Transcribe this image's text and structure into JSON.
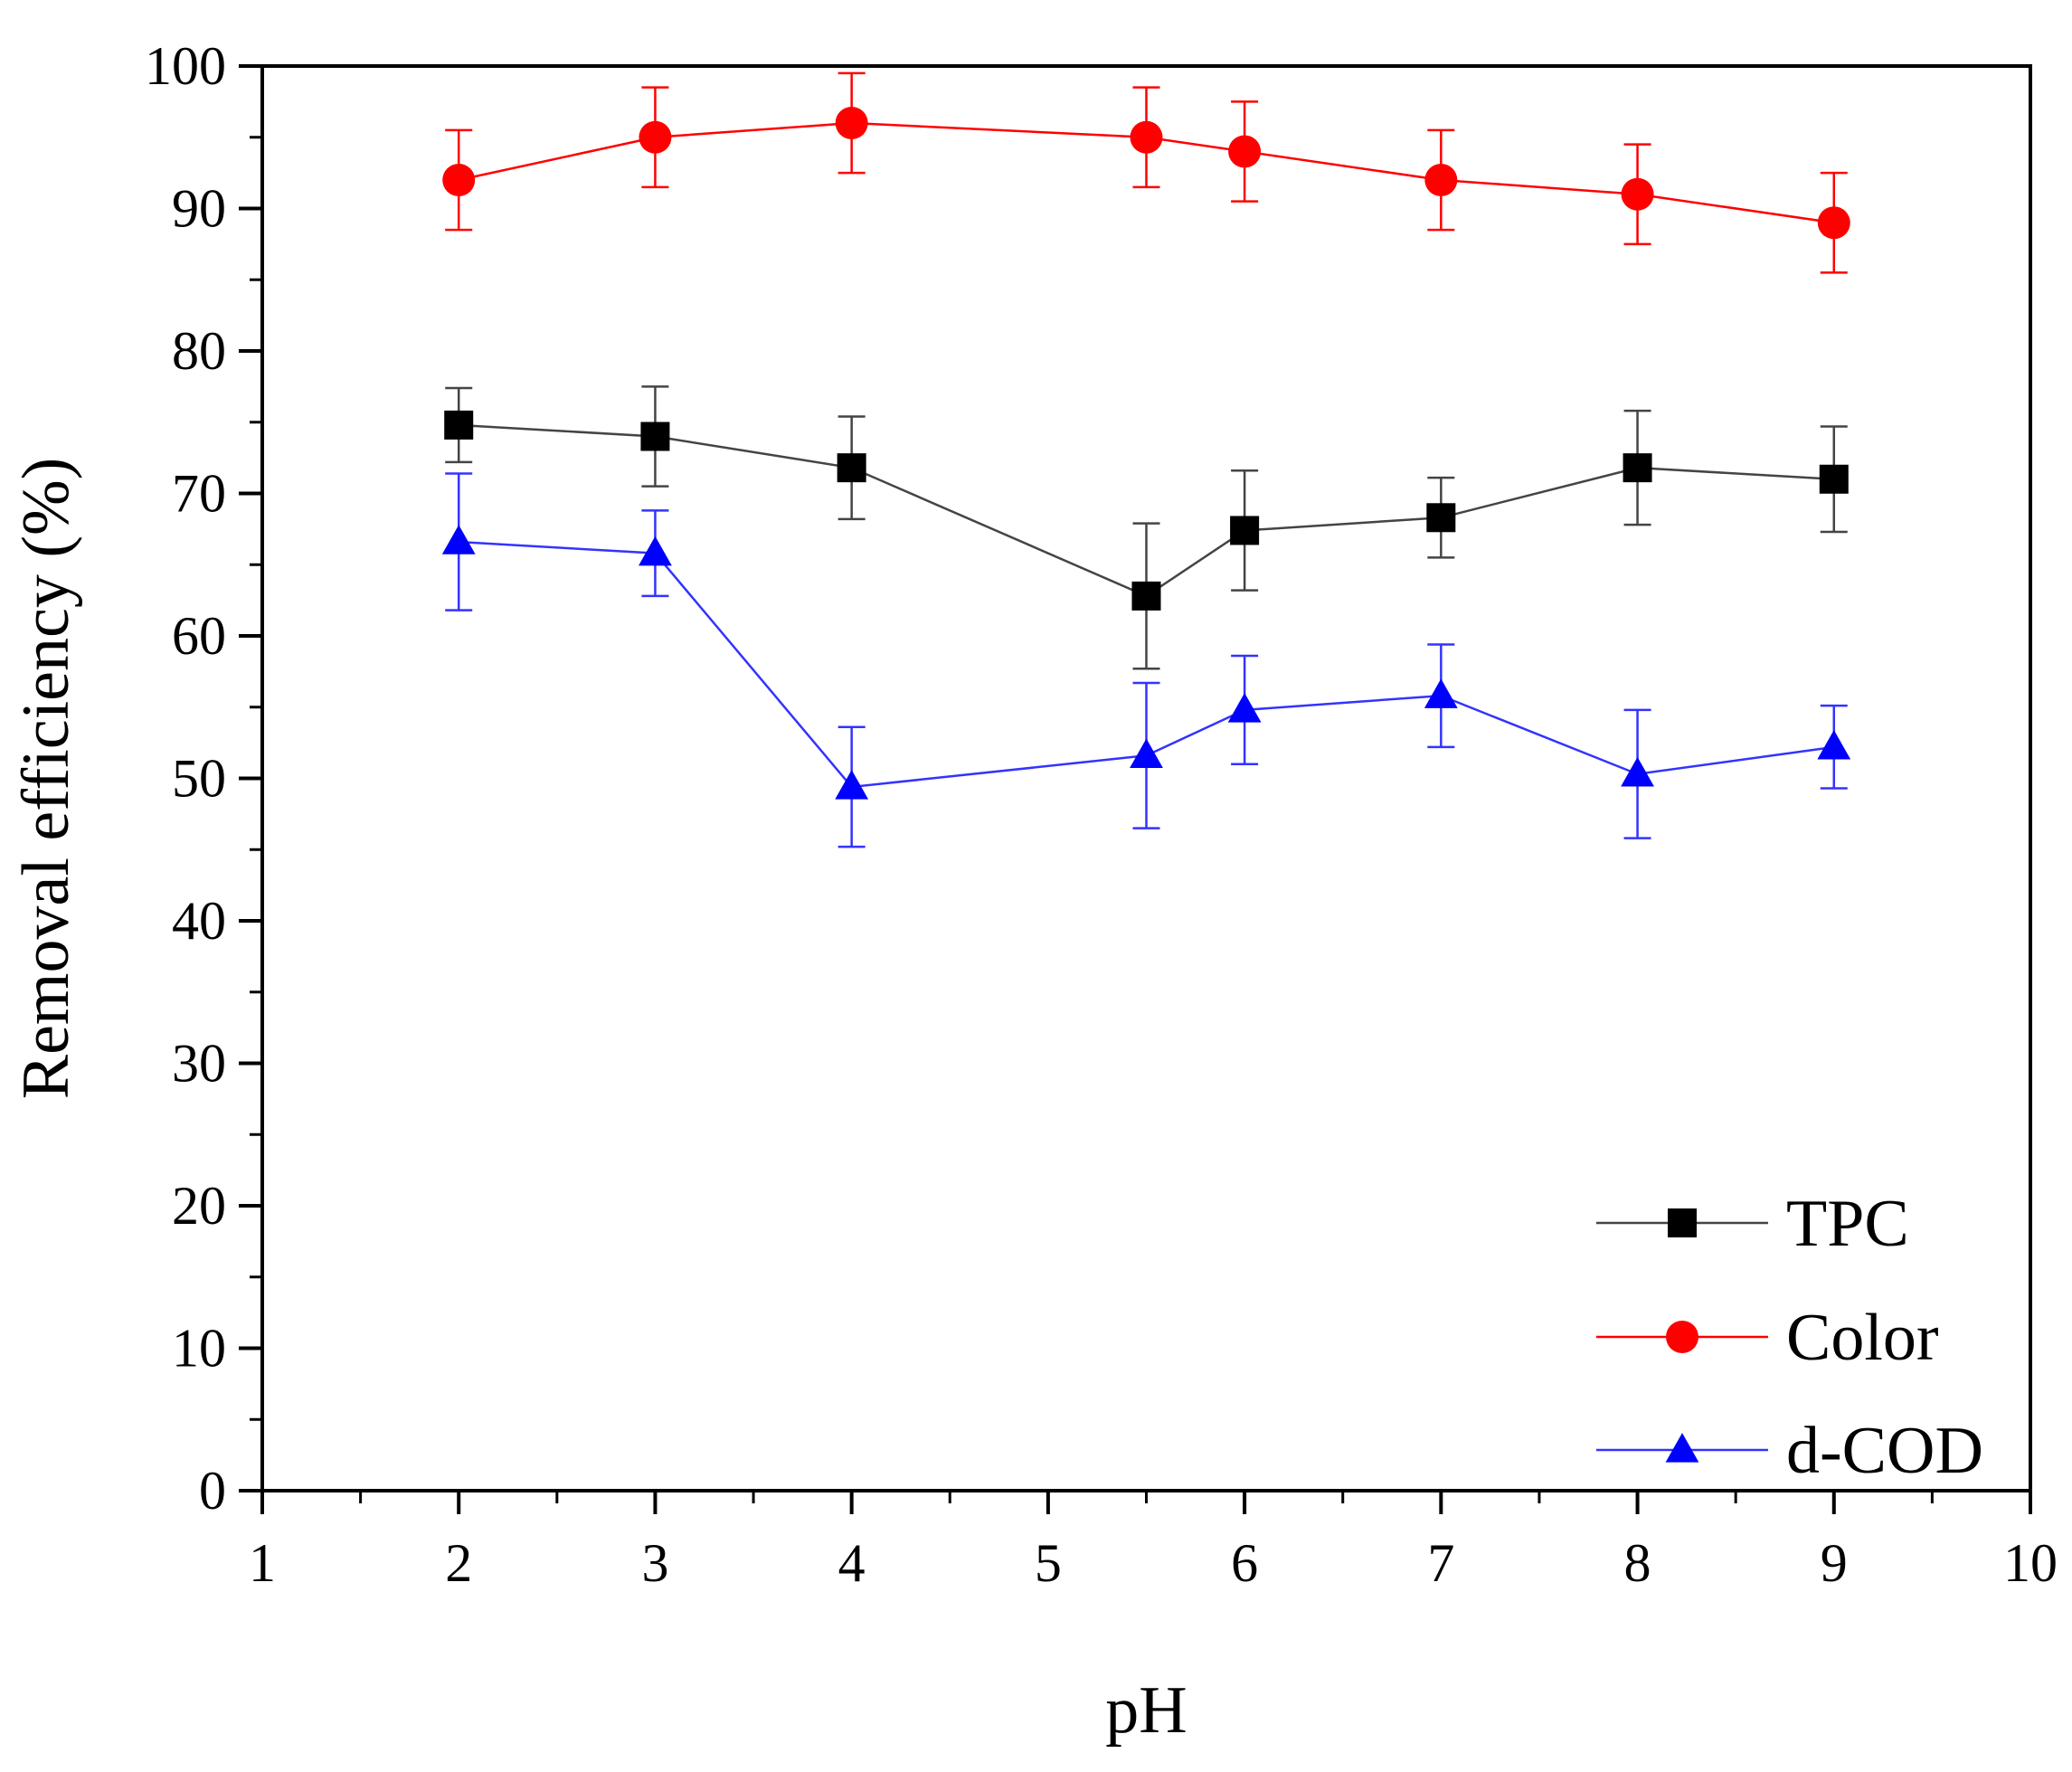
{
  "chart_data": {
    "type": "line",
    "title": "",
    "xlabel": "pH",
    "ylabel": "Removal efficiency (%)",
    "xlim": [
      1,
      10
    ],
    "ylim": [
      0,
      100
    ],
    "xticks": [
      1,
      2,
      3,
      4,
      5,
      6,
      7,
      8,
      9,
      10
    ],
    "yticks": [
      0,
      10,
      20,
      30,
      40,
      50,
      60,
      70,
      80,
      90,
      100
    ],
    "grid": false,
    "legend_position": "bottom-right",
    "series": [
      {
        "name": "TPC",
        "color": "#000000",
        "line_color": "#444444",
        "marker": "square",
        "x": [
          2,
          3,
          4,
          5.5,
          6,
          7,
          8,
          9
        ],
        "y": [
          74.8,
          74.0,
          71.8,
          62.8,
          67.4,
          68.3,
          71.8,
          71.0
        ],
        "error": [
          2.6,
          3.5,
          3.6,
          5.1,
          4.2,
          2.8,
          4.0,
          3.7
        ]
      },
      {
        "name": "Color",
        "color": "#ff0000",
        "line_color": "#ff0000",
        "marker": "circle",
        "x": [
          2,
          3,
          4,
          5.5,
          6,
          7,
          8,
          9
        ],
        "y": [
          92.0,
          95.0,
          96.0,
          95.0,
          94.0,
          92.0,
          91.0,
          89.0
        ],
        "error": [
          3.5,
          3.5,
          3.5,
          3.5,
          3.5,
          3.5,
          3.5,
          3.5
        ]
      },
      {
        "name": "d-COD",
        "color": "#0000ff",
        "line_color": "#3333ff",
        "marker": "triangle",
        "x": [
          2,
          3,
          4,
          5.5,
          6,
          7,
          8,
          9
        ],
        "y": [
          66.6,
          65.8,
          49.4,
          51.6,
          54.8,
          55.8,
          50.3,
          52.2
        ],
        "error": [
          4.8,
          3.0,
          4.2,
          5.1,
          3.8,
          3.6,
          4.5,
          2.9
        ]
      }
    ]
  }
}
